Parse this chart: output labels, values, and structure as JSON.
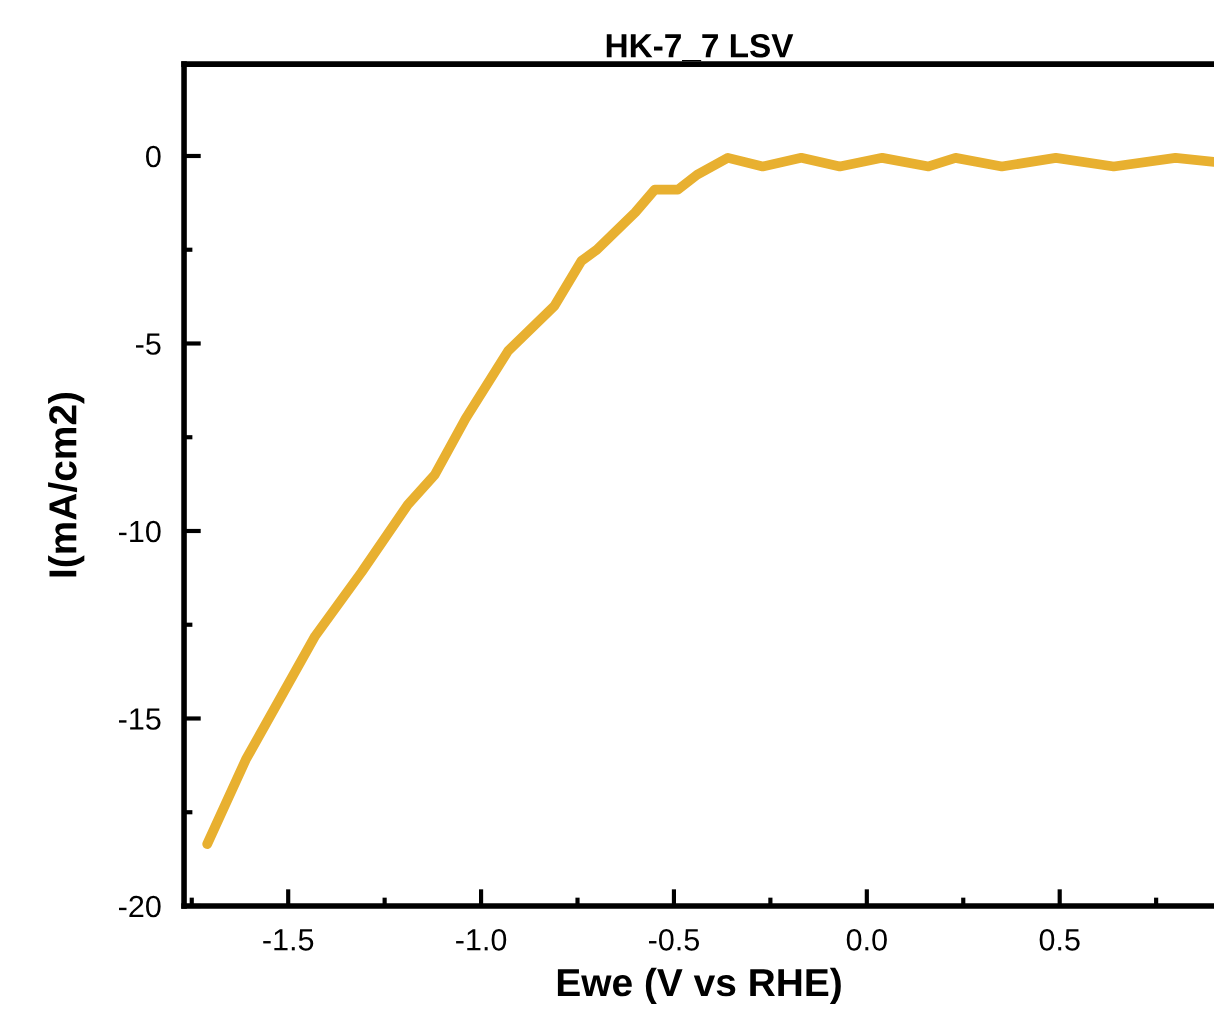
{
  "chart_data": {
    "type": "line",
    "title": "HK-7_7 LSV",
    "xlabel": "Ewe (V vs RHE)",
    "ylabel": "I(mA/cm2)",
    "xlim": [
      -1.77,
      0.9
    ],
    "ylim": [
      -20,
      2.45
    ],
    "xticks": [
      -1.5,
      {
        "value": -1,
        "label": "-1.0"
      },
      -0.5,
      {
        "value": 0,
        "label": "0.0"
      },
      0.5
    ],
    "yticks": [
      -20,
      -15,
      -10,
      -5,
      0
    ],
    "grid": false,
    "marker": "none",
    "line_style": "solid",
    "series": [
      {
        "color": "#e8b030",
        "x": [
          -1.71,
          -1.61,
          -1.43,
          -1.31,
          -1.19,
          -1.12,
          -1.04,
          -0.93,
          -0.81,
          -0.74,
          -0.7,
          -0.6,
          -0.55,
          -0.49,
          -0.44,
          -0.36,
          -0.27,
          -0.17,
          -0.07,
          0.04,
          0.16,
          0.23,
          0.35,
          0.49,
          0.64,
          0.8,
          0.9
        ],
        "values": [
          -18.35,
          -16.1,
          -12.8,
          -11.1,
          -9.3,
          -8.5,
          -7.0,
          -5.2,
          -4.0,
          -2.8,
          -2.5,
          -1.5,
          -0.9,
          -0.9,
          -0.5,
          -0.05,
          -0.28,
          -0.05,
          -0.28,
          -0.05,
          -0.28,
          -0.05,
          -0.28,
          -0.05,
          -0.28,
          -0.05,
          -0.16
        ]
      }
    ]
  }
}
